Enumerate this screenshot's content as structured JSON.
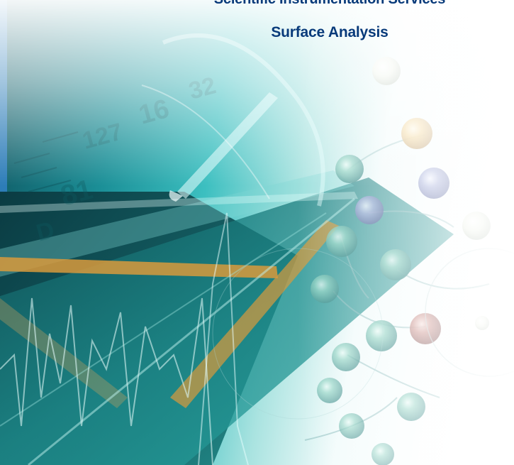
{
  "brochure": {
    "series_title": "Scientific Instrumentation Services",
    "subject_title": "Surface Analysis"
  },
  "artwork": {
    "description_free": true,
    "colors": {
      "blue_band": "#3a8fc0",
      "dark_teal": "#0c3d45",
      "teal": "#1aa3a8",
      "aqua": "#5fd0cf",
      "amber": "#d89a3c",
      "title_blue": "#083a7a",
      "fade_white": "#ffffff"
    },
    "icons": [
      "test-tube",
      "glass-rod",
      "molecule-spheres",
      "spectrum-trace"
    ]
  }
}
